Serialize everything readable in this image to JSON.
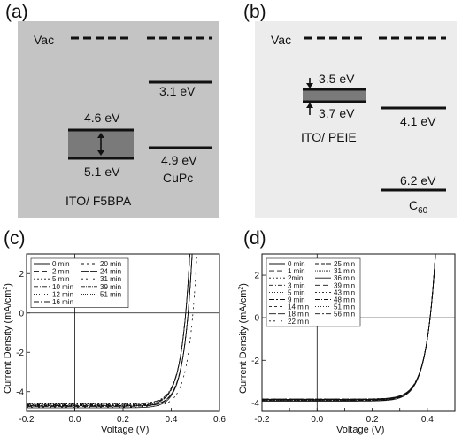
{
  "panels": {
    "a": {
      "label": "(a)",
      "vac": "Vac",
      "left_top": "4.6 eV",
      "left_bottom": "5.1 eV",
      "left_caption": "ITO/ F5BPA",
      "right_top": "3.1 eV",
      "right_bottom": "4.9 eV",
      "right_caption": "CuPc",
      "colors": {
        "background": "#c4c4c4",
        "band": "#7a7a7a"
      }
    },
    "b": {
      "label": "(b)",
      "vac": "Vac",
      "left_top": "3.5 eV",
      "left_bottom": "3.7 eV",
      "left_caption": "ITO/ PEIE",
      "right_top": "4.1 eV",
      "right_bottom": "6.2 eV",
      "right_caption_main": "C",
      "right_caption_sub": "60",
      "colors": {
        "background": "#ececec",
        "band": "#7a7a7a"
      }
    },
    "c": {
      "label": "(c)"
    },
    "d": {
      "label": "(d)"
    }
  },
  "chart_data": [
    {
      "type": "line",
      "panel": "c",
      "xlabel": "Voltage (V)",
      "ylabel_main": "Current Density (mA/cm",
      "ylabel_sup": "2",
      "ylabel_end": ")",
      "xlim": [
        -0.2,
        0.6
      ],
      "ylim": [
        -5,
        3
      ],
      "xticks": [
        -0.2,
        0.0,
        0.2,
        0.4,
        0.6
      ],
      "xtick_labels": [
        "-0.2",
        "0.0",
        "0.2",
        "0.4",
        "0.6"
      ],
      "yticks": [
        -4,
        -2,
        0,
        2
      ],
      "legend_position": "top-left",
      "legend_columns": 2,
      "series": [
        {
          "name": "0 min",
          "jsc": -4.82,
          "voc": 0.47
        },
        {
          "name": "2 min",
          "jsc": -4.75,
          "voc": 0.47
        },
        {
          "name": "5 min",
          "jsc": -4.7,
          "voc": 0.46
        },
        {
          "name": "10 min",
          "jsc": -4.65,
          "voc": 0.46
        },
        {
          "name": "12 min",
          "jsc": -4.62,
          "voc": 0.46
        },
        {
          "name": "16 min",
          "jsc": -4.6,
          "voc": 0.46
        },
        {
          "name": "20 min",
          "jsc": -4.68,
          "voc": 0.46
        },
        {
          "name": "24 min",
          "jsc": -4.72,
          "voc": 0.47
        },
        {
          "name": "31 min",
          "jsc": -4.78,
          "voc": 0.49
        },
        {
          "name": "39 min",
          "jsc": -4.74,
          "voc": 0.47
        },
        {
          "name": "51 min",
          "jsc": -4.7,
          "voc": 0.46
        }
      ]
    },
    {
      "type": "line",
      "panel": "d",
      "xlabel": "Voltage (V)",
      "ylabel_main": "Current Density (mA/cm",
      "ylabel_sup": "2",
      "ylabel_end": ")",
      "xlim": [
        -0.2,
        0.5
      ],
      "ylim": [
        -4.4,
        3
      ],
      "xticks": [
        -0.2,
        -0.1,
        0.0,
        0.1,
        0.2,
        0.3,
        0.4,
        0.5
      ],
      "xtick_labels": [
        "-0.2",
        "",
        "0.0",
        "",
        "0.2",
        "",
        "0.4",
        ""
      ],
      "yticks": [
        -4,
        -2,
        0,
        2
      ],
      "legend_position": "top-left",
      "legend_columns": 2,
      "series": [
        {
          "name": "0 min",
          "jsc": -3.92,
          "voc": 0.41
        },
        {
          "name": "1 min",
          "jsc": -3.9,
          "voc": 0.41
        },
        {
          "name": "2min",
          "jsc": -3.88,
          "voc": 0.41
        },
        {
          "name": "3 min",
          "jsc": -3.86,
          "voc": 0.41
        },
        {
          "name": "5 min",
          "jsc": -3.85,
          "voc": 0.41
        },
        {
          "name": "9 min",
          "jsc": -3.84,
          "voc": 0.41
        },
        {
          "name": "14 min",
          "jsc": -3.83,
          "voc": 0.41
        },
        {
          "name": "18 min",
          "jsc": -3.82,
          "voc": 0.41
        },
        {
          "name": "22 min",
          "jsc": -3.82,
          "voc": 0.41
        },
        {
          "name": "25 min",
          "jsc": -3.86,
          "voc": 0.41
        },
        {
          "name": "31 min",
          "jsc": -3.88,
          "voc": 0.41
        },
        {
          "name": "36 min",
          "jsc": -3.84,
          "voc": 0.41
        },
        {
          "name": "39 min",
          "jsc": -3.86,
          "voc": 0.41
        },
        {
          "name": "43 min",
          "jsc": -3.87,
          "voc": 0.41
        },
        {
          "name": "48 min",
          "jsc": -3.85,
          "voc": 0.41
        },
        {
          "name": "51 min",
          "jsc": -3.83,
          "voc": 0.41
        },
        {
          "name": "56 min",
          "jsc": -3.84,
          "voc": 0.41
        }
      ]
    }
  ]
}
